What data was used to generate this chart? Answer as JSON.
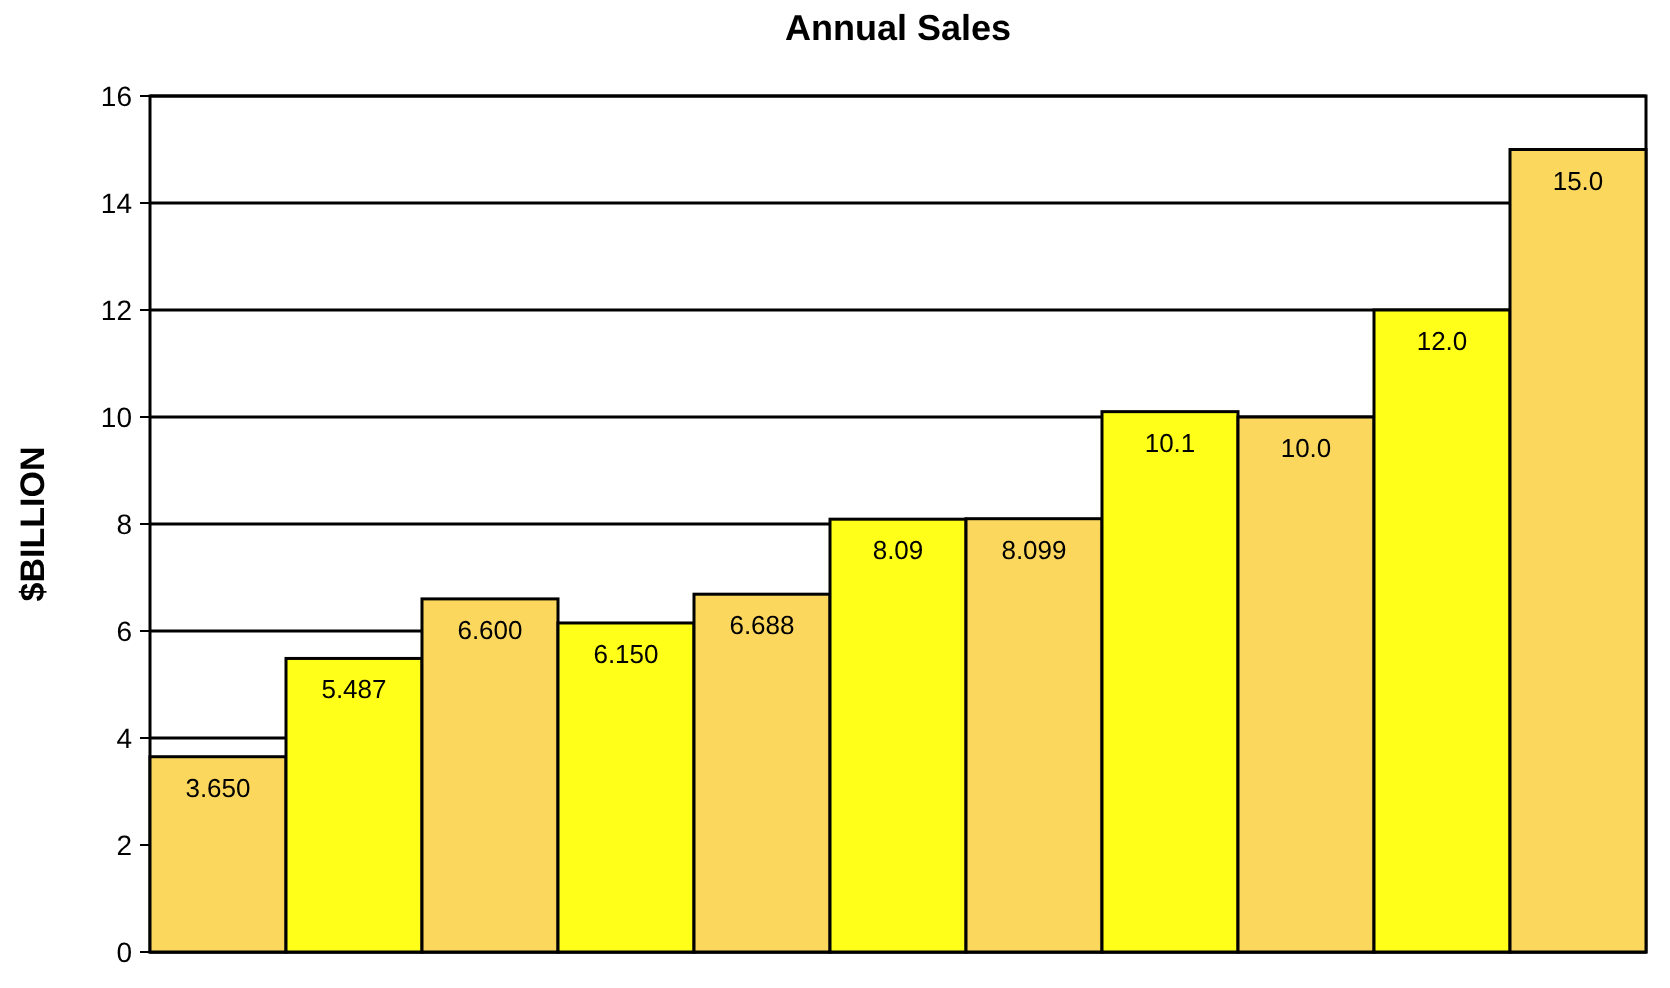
{
  "chart_data": {
    "type": "bar",
    "title": "Annual Sales",
    "ylabel": "$BILLION",
    "categories": [
      null,
      null,
      null,
      null,
      null,
      null,
      null,
      null,
      null,
      null,
      null
    ],
    "values": [
      3.65,
      5.487,
      6.6,
      6.15,
      6.688,
      8.09,
      8.099,
      10.1,
      10.0,
      12.0,
      15.0
    ],
    "value_labels": [
      "3.650",
      "5.487",
      "6.600",
      "6.150",
      "6.688",
      "8.09",
      "8.099",
      "10.1",
      "10.0",
      "12.0",
      "15.0"
    ],
    "colors": [
      "#fcd75e",
      "#ffff1a",
      "#fcd75e",
      "#ffff1a",
      "#fcd75e",
      "#ffff1a",
      "#fcd75e",
      "#ffff1a",
      "#fcd75e",
      "#ffff1a",
      "#fcd75e"
    ],
    "ylim": [
      0,
      16
    ],
    "yticks": [
      0,
      2,
      4,
      6,
      8,
      10,
      12,
      14,
      16
    ],
    "grid": "y"
  }
}
